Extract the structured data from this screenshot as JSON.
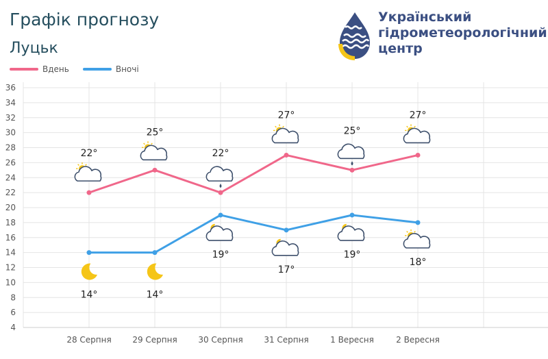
{
  "header": {
    "title": "Графік прогнозу",
    "city": "Луцьк"
  },
  "logo": {
    "line1": "Український",
    "line2": "гідрометеорологічний",
    "line3": "центр"
  },
  "chart_data": {
    "type": "line",
    "categories": [
      "28 Серпня",
      "29 Серпня",
      "30 Серпня",
      "31 Серпня",
      "1 Вересня",
      "2 Вересня"
    ],
    "series": [
      {
        "name": "Вдень",
        "color": "#F0678A",
        "values": [
          22,
          25,
          22,
          27,
          25,
          27
        ],
        "labels": [
          "22°",
          "25°",
          "22°",
          "27°",
          "25°",
          "27°"
        ],
        "icons": [
          "sun-cloud-icon",
          "sun-cloud-icon",
          "rain-cloud-icon",
          "sun-cloud-icon",
          "rain-cloud-icon",
          "sun-cloud-icon"
        ]
      },
      {
        "name": "Вночі",
        "color": "#3FA0E6",
        "values": [
          14,
          14,
          19,
          17,
          19,
          18
        ],
        "labels": [
          "14°",
          "14°",
          "19°",
          "17°",
          "19°",
          "18°"
        ],
        "icons": [
          "moon-icon",
          "moon-icon",
          "moon-cloud-icon",
          "moon-cloud-icon",
          "moon-cloud-icon",
          "sun-cloud-icon"
        ]
      }
    ],
    "yticks": [
      4,
      6,
      8,
      10,
      12,
      14,
      16,
      18,
      20,
      22,
      24,
      26,
      28,
      30,
      32,
      34,
      36
    ],
    "ylim": [
      4,
      36
    ],
    "grid": true,
    "legend": "top-left"
  }
}
